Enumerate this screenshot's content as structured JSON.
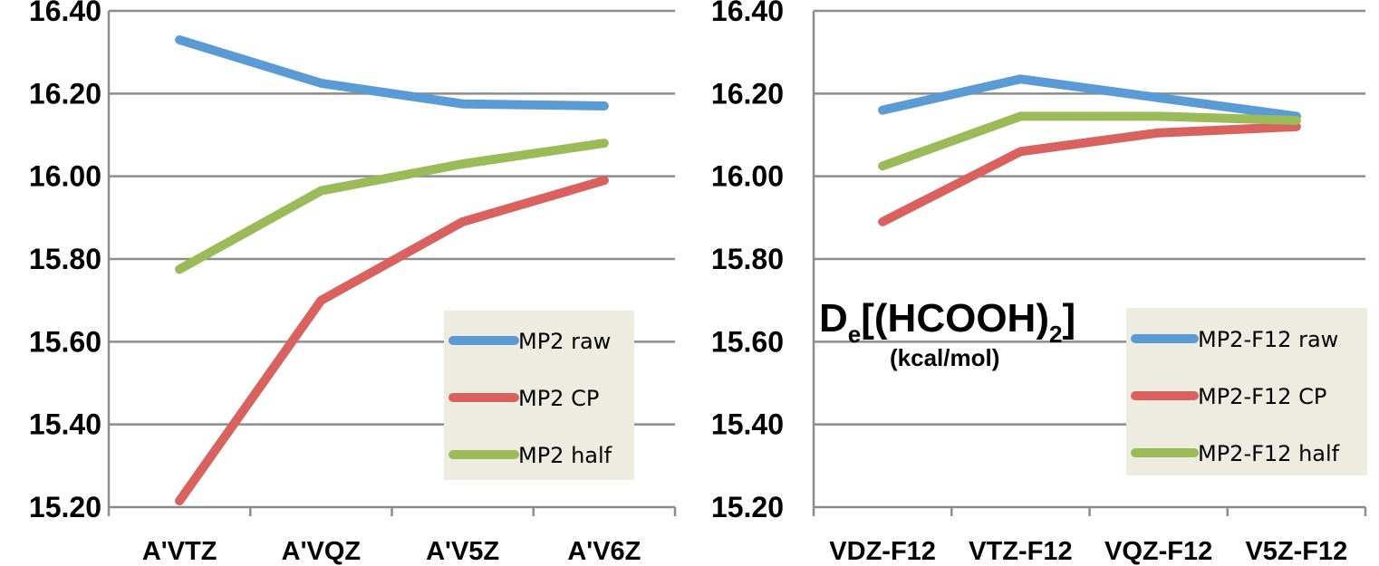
{
  "chart_data": [
    {
      "type": "line",
      "categories": [
        "A'VTZ",
        "A'VQZ",
        "A'V5Z",
        "A'V6Z"
      ],
      "ylim": [
        15.2,
        16.4
      ],
      "yticks": [
        "15.20",
        "15.40",
        "15.60",
        "15.80",
        "16.00",
        "16.20",
        "16.40"
      ],
      "grid": true,
      "legend_position": "bottom-right",
      "series": [
        {
          "name": "MP2 raw",
          "color": "#5B9BD5",
          "values": [
            16.33,
            16.225,
            16.175,
            16.17
          ]
        },
        {
          "name": "MP2 CP",
          "color": "#D9625E",
          "values": [
            15.215,
            15.7,
            15.89,
            15.99
          ]
        },
        {
          "name": "MP2 half",
          "color": "#9BBB59",
          "values": [
            15.775,
            15.965,
            16.03,
            16.08
          ]
        }
      ]
    },
    {
      "type": "line",
      "categories": [
        "VDZ-F12",
        "VTZ-F12",
        "VQZ-F12",
        "V5Z-F12"
      ],
      "ylim": [
        15.2,
        16.4
      ],
      "yticks": [
        "15.20",
        "15.40",
        "15.60",
        "15.80",
        "16.00",
        "16.20",
        "16.40"
      ],
      "grid": true,
      "legend_position": "bottom-right",
      "series": [
        {
          "name": "MP2-F12 raw",
          "color": "#5B9BD5",
          "values": [
            16.16,
            16.235,
            16.19,
            16.145
          ]
        },
        {
          "name": "MP2-F12 CP",
          "color": "#D9625E",
          "values": [
            15.89,
            16.06,
            16.105,
            16.12
          ]
        },
        {
          "name": "MP2-F12 half",
          "color": "#9BBB59",
          "values": [
            16.025,
            16.145,
            16.145,
            16.135
          ]
        }
      ]
    }
  ],
  "annotation": {
    "main": "D",
    "main_sub": "e",
    "bracket": "[(HCOOH)",
    "bracket_sub": "2",
    "bracket_close": "]",
    "units": "(kcal/mol)"
  }
}
